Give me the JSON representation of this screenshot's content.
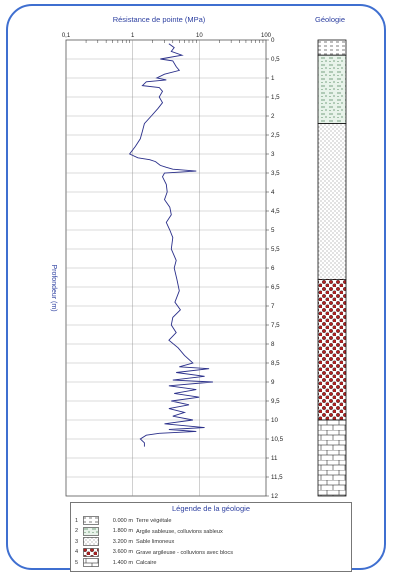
{
  "chart_data": {
    "type": "line",
    "title": "Résistance de pointe (MPa)",
    "ylabel": "Profondeur (m)",
    "xscale": "log",
    "xlim": [
      0.1,
      100
    ],
    "ylim": [
      0,
      12
    ],
    "xticks": [
      "0,1",
      "1",
      "10",
      "100"
    ],
    "yticks": [
      "0",
      "0,5",
      "1",
      "1,5",
      "2",
      "2,5",
      "3",
      "3,5",
      "4",
      "4,5",
      "5",
      "5,5",
      "6",
      "6,5",
      "7",
      "7,5",
      "8",
      "8,5",
      "9",
      "9,5",
      "10",
      "10,5",
      "11",
      "11,5",
      "12"
    ],
    "series": [
      {
        "color": "#2a2f8a",
        "points": [
          [
            3.5,
            0.1
          ],
          [
            4.2,
            0.2
          ],
          [
            3.8,
            0.3
          ],
          [
            5.5,
            0.4
          ],
          [
            2.6,
            0.5
          ],
          [
            4.0,
            0.55
          ],
          [
            4.5,
            0.7
          ],
          [
            5.0,
            0.8
          ],
          [
            3.0,
            0.9
          ],
          [
            2.3,
            1.0
          ],
          [
            3.2,
            1.05
          ],
          [
            1.6,
            1.1
          ],
          [
            1.4,
            1.2
          ],
          [
            2.5,
            1.25
          ],
          [
            2.8,
            1.35
          ],
          [
            2.5,
            1.5
          ],
          [
            2.8,
            1.65
          ],
          [
            2.4,
            1.8
          ],
          [
            1.9,
            2.0
          ],
          [
            1.5,
            2.2
          ],
          [
            1.4,
            2.4
          ],
          [
            1.3,
            2.6
          ],
          [
            1.1,
            2.8
          ],
          [
            0.9,
            3.0
          ],
          [
            1.2,
            3.1
          ],
          [
            1.8,
            3.15
          ],
          [
            2.2,
            3.2
          ],
          [
            2.6,
            3.3
          ],
          [
            3.2,
            3.35
          ],
          [
            4.0,
            3.4
          ],
          [
            9.0,
            3.45
          ],
          [
            3.0,
            3.5
          ],
          [
            2.8,
            3.6
          ],
          [
            3.2,
            3.8
          ],
          [
            3.3,
            4.0
          ],
          [
            3.0,
            4.2
          ],
          [
            3.6,
            4.4
          ],
          [
            3.8,
            4.6
          ],
          [
            3.2,
            4.8
          ],
          [
            3.6,
            5.0
          ],
          [
            4.0,
            5.2
          ],
          [
            3.8,
            5.5
          ],
          [
            4.5,
            5.8
          ],
          [
            4.2,
            6.0
          ],
          [
            4.6,
            6.3
          ],
          [
            5.0,
            6.6
          ],
          [
            4.3,
            6.9
          ],
          [
            5.2,
            7.1
          ],
          [
            4.0,
            7.3
          ],
          [
            3.8,
            7.5
          ],
          [
            4.5,
            7.7
          ],
          [
            3.5,
            7.9
          ],
          [
            4.8,
            8.1
          ],
          [
            6.0,
            8.3
          ],
          [
            8.0,
            8.5
          ],
          [
            5.0,
            8.6
          ],
          [
            14.0,
            8.65
          ],
          [
            4.5,
            8.75
          ],
          [
            12.0,
            8.85
          ],
          [
            4.0,
            8.95
          ],
          [
            16.0,
            9.0
          ],
          [
            3.5,
            9.1
          ],
          [
            9.0,
            9.2
          ],
          [
            4.2,
            9.3
          ],
          [
            10.0,
            9.4
          ],
          [
            3.8,
            9.5
          ],
          [
            7.0,
            9.6
          ],
          [
            3.5,
            9.7
          ],
          [
            6.0,
            9.8
          ],
          [
            4.0,
            9.9
          ],
          [
            8.0,
            10.0
          ],
          [
            3.0,
            10.1
          ],
          [
            12.0,
            10.2
          ],
          [
            3.5,
            10.25
          ],
          [
            9.0,
            10.3
          ],
          [
            2.5,
            10.35
          ],
          [
            1.6,
            10.4
          ],
          [
            1.3,
            10.5
          ],
          [
            1.5,
            10.6
          ],
          [
            1.5,
            10.7
          ]
        ]
      }
    ]
  },
  "geology": {
    "title": "Géologie",
    "layers": [
      {
        "pattern": "terre",
        "top": 0,
        "bottom": 0.4
      },
      {
        "pattern": "argile",
        "top": 0.4,
        "bottom": 2.2
      },
      {
        "pattern": "sable",
        "top": 2.2,
        "bottom": 6.3
      },
      {
        "pattern": "grave",
        "top": 6.3,
        "bottom": 10.0
      },
      {
        "pattern": "calcaire",
        "top": 10.0,
        "bottom": 12.0
      }
    ]
  },
  "legend": {
    "title": "Légende de la géologie",
    "rows": [
      {
        "num": "1",
        "depth": "0.000 m",
        "label": "Terre végétale"
      },
      {
        "num": "2",
        "depth": "1.800 m",
        "label": "Argile sableuse, colluvions sableux"
      },
      {
        "num": "3",
        "depth": "3.200 m",
        "label": "Sable limoneux"
      },
      {
        "num": "4",
        "depth": "3.600 m",
        "label": "Grave argileuse - colluvions avec blocs"
      },
      {
        "num": "5",
        "depth": "1.400 m",
        "label": "Calcaire"
      }
    ]
  }
}
